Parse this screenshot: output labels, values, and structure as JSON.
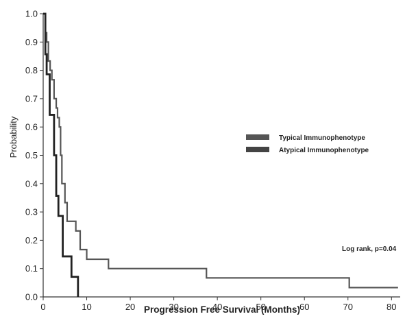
{
  "chart_data": {
    "type": "line",
    "subtype": "kaplan-meier step",
    "xlabel": "Progression Free Survival (Months)",
    "ylabel": "Probability",
    "xlim": [
      0,
      82
    ],
    "ylim": [
      0,
      1.0
    ],
    "xticks": [
      "0",
      "10",
      "20",
      "30",
      "40",
      "50",
      "60",
      "70",
      "80"
    ],
    "xtick_values": [
      0,
      10,
      20,
      30,
      40,
      50,
      60,
      70,
      80
    ],
    "yticks": [
      "0.0",
      "0.1",
      "0.2",
      "0.3",
      "0.4",
      "0.5",
      "0.6",
      "0.7",
      "0.8",
      "0.9",
      "1.0"
    ],
    "ytick_values": [
      0,
      0.1,
      0.2,
      0.3,
      0.4,
      0.5,
      0.6,
      0.7,
      0.8,
      0.9,
      1.0
    ],
    "grid": false,
    "legend_position": "right-middle",
    "series": [
      {
        "name": "Typical Immunophenotype",
        "color": "#555555",
        "x": [
          0,
          0.5,
          0.8,
          1.2,
          1.6,
          2.0,
          2.5,
          3.0,
          3.3,
          3.7,
          4.0,
          4.3,
          5.0,
          5.5,
          7.5,
          8.5,
          10.0,
          15.0,
          37.5,
          70.3,
          81.5
        ],
        "y": [
          1.0,
          0.933,
          0.9,
          0.833,
          0.8,
          0.767,
          0.7,
          0.667,
          0.633,
          0.6,
          0.5,
          0.4,
          0.333,
          0.267,
          0.233,
          0.167,
          0.133,
          0.1,
          0.067,
          0.033,
          0.033
        ]
      },
      {
        "name": "Atypical Immunophenotype",
        "color": "#222222",
        "x": [
          0,
          0.5,
          0.8,
          1.5,
          2.5,
          3.0,
          3.5,
          4.5,
          6.5,
          8.0
        ],
        "y": [
          1.0,
          0.857,
          0.786,
          0.643,
          0.5,
          0.357,
          0.286,
          0.143,
          0.071,
          0.0
        ]
      }
    ],
    "annotations": [
      "Log rank, p=0.04"
    ]
  }
}
